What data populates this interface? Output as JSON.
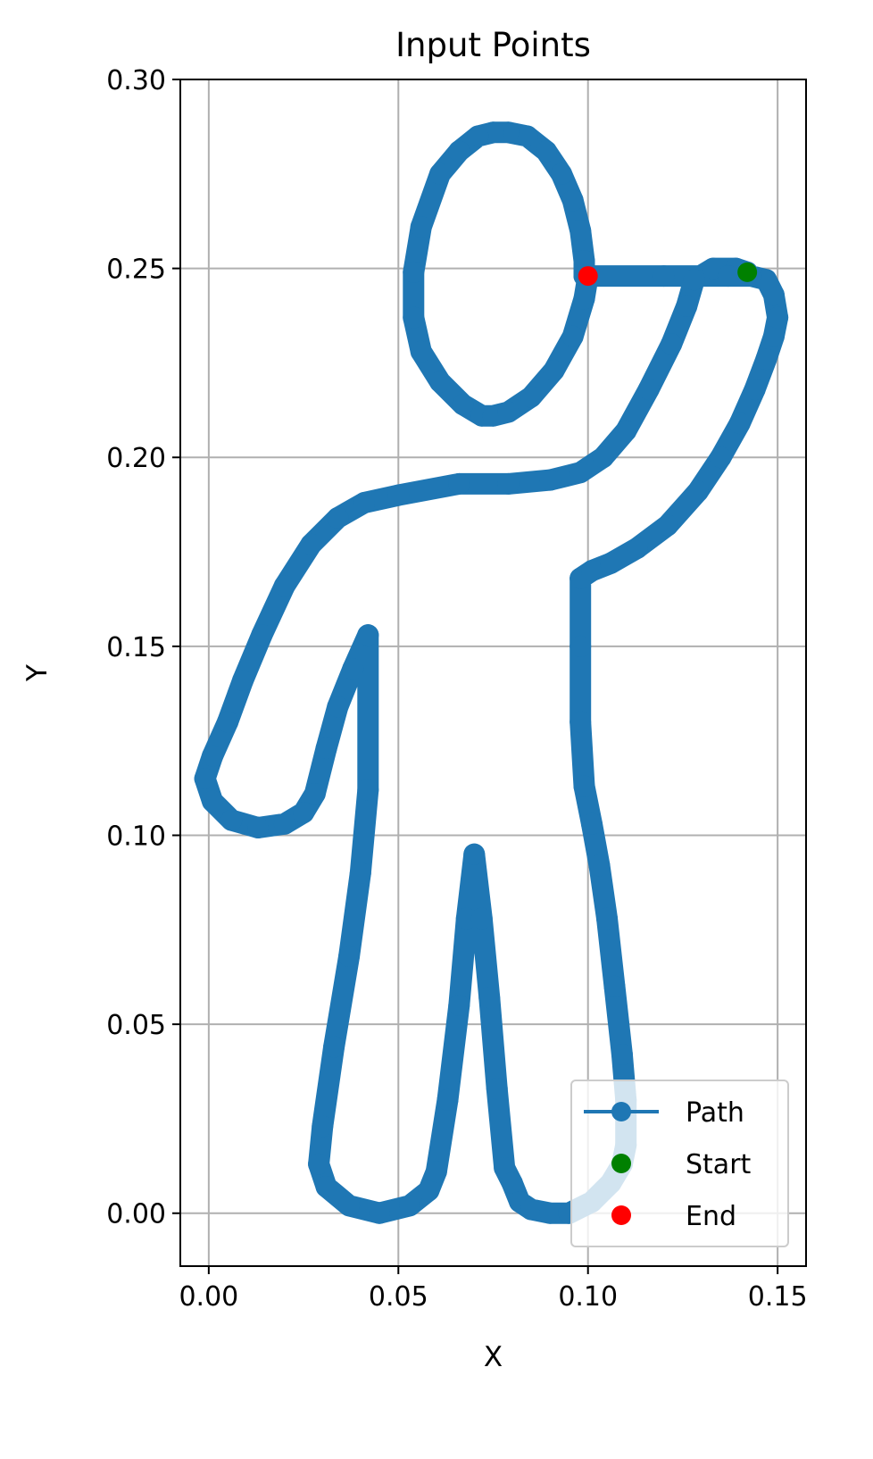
{
  "chart_data": {
    "type": "line",
    "title": "Input Points",
    "xlabel": "X",
    "ylabel": "Y",
    "xlim": [
      -0.0075,
      0.1575
    ],
    "ylim": [
      -0.014,
      0.3
    ],
    "xticks": [
      0.0,
      0.05,
      0.1,
      0.15
    ],
    "xtick_labels": [
      "0.00",
      "0.05",
      "0.10",
      "0.15"
    ],
    "yticks": [
      0.0,
      0.05,
      0.1,
      0.15,
      0.2,
      0.25,
      0.3
    ],
    "ytick_labels": [
      "0.00",
      "0.05",
      "0.10",
      "0.15",
      "0.20",
      "0.25",
      "0.30"
    ],
    "grid": true,
    "legend_position": "lower-right",
    "series": [
      {
        "name": "Path",
        "color": "#1f77b4",
        "marker": "circle",
        "x": [
          0.142,
          0.139,
          0.133,
          0.128,
          0.126,
          0.122,
          0.116,
          0.11,
          0.104,
          0.098,
          0.09,
          0.079,
          0.066,
          0.05,
          0.041,
          0.034,
          0.027,
          0.02,
          0.014,
          0.009,
          0.005,
          0.001,
          -0.001,
          0.001,
          0.006,
          0.013,
          0.02,
          0.025,
          0.028,
          0.031,
          0.034,
          0.038,
          0.042,
          0.042,
          0.042,
          0.04,
          0.037,
          0.033,
          0.03,
          0.029,
          0.031,
          0.037,
          0.045,
          0.053,
          0.058,
          0.06,
          0.063,
          0.066,
          0.068,
          0.07,
          0.072,
          0.074,
          0.076,
          0.078,
          0.08,
          0.082,
          0.085,
          0.09,
          0.095,
          0.101,
          0.106,
          0.109,
          0.11,
          0.11,
          0.109,
          0.107,
          0.105,
          0.103,
          0.101,
          0.099,
          0.098,
          0.098,
          0.098,
          0.098,
          0.101,
          0.106,
          0.113,
          0.121,
          0.129,
          0.135,
          0.14,
          0.144,
          0.147,
          0.149,
          0.15,
          0.149,
          0.147,
          0.143,
          0.137,
          0.12,
          0.099,
          0.099,
          0.098,
          0.096,
          0.093,
          0.089,
          0.084,
          0.079,
          0.075,
          0.071,
          0.066,
          0.061,
          0.056,
          0.054,
          0.054,
          0.056,
          0.061,
          0.067,
          0.072,
          0.075,
          0.079,
          0.085,
          0.091,
          0.096,
          0.099,
          0.1
        ],
        "y": [
          0.249,
          0.25,
          0.25,
          0.247,
          0.24,
          0.23,
          0.218,
          0.207,
          0.2,
          0.196,
          0.194,
          0.193,
          0.193,
          0.19,
          0.188,
          0.184,
          0.177,
          0.166,
          0.153,
          0.141,
          0.13,
          0.121,
          0.115,
          0.109,
          0.104,
          0.102,
          0.103,
          0.106,
          0.111,
          0.123,
          0.134,
          0.144,
          0.153,
          0.153,
          0.112,
          0.09,
          0.068,
          0.044,
          0.023,
          0.013,
          0.007,
          0.002,
          0.0,
          0.002,
          0.006,
          0.011,
          0.03,
          0.055,
          0.078,
          0.095,
          0.078,
          0.057,
          0.033,
          0.012,
          0.008,
          0.003,
          0.001,
          0.0,
          0.0,
          0.003,
          0.008,
          0.013,
          0.018,
          0.03,
          0.042,
          0.06,
          0.078,
          0.092,
          0.103,
          0.113,
          0.13,
          0.15,
          0.168,
          0.168,
          0.17,
          0.172,
          0.176,
          0.182,
          0.191,
          0.2,
          0.209,
          0.218,
          0.226,
          0.232,
          0.237,
          0.243,
          0.247,
          0.248,
          0.248,
          0.248,
          0.248,
          0.252,
          0.26,
          0.268,
          0.275,
          0.281,
          0.285,
          0.286,
          0.286,
          0.285,
          0.281,
          0.275,
          0.261,
          0.249,
          0.237,
          0.228,
          0.22,
          0.214,
          0.211,
          0.211,
          0.212,
          0.216,
          0.223,
          0.232,
          0.242,
          0.248
        ]
      },
      {
        "name": "Start",
        "color": "#008000",
        "marker": "circle",
        "x": [
          0.142
        ],
        "y": [
          0.249
        ]
      },
      {
        "name": "End",
        "color": "#ff0000",
        "marker": "circle",
        "x": [
          0.1
        ],
        "y": [
          0.248
        ]
      }
    ]
  }
}
